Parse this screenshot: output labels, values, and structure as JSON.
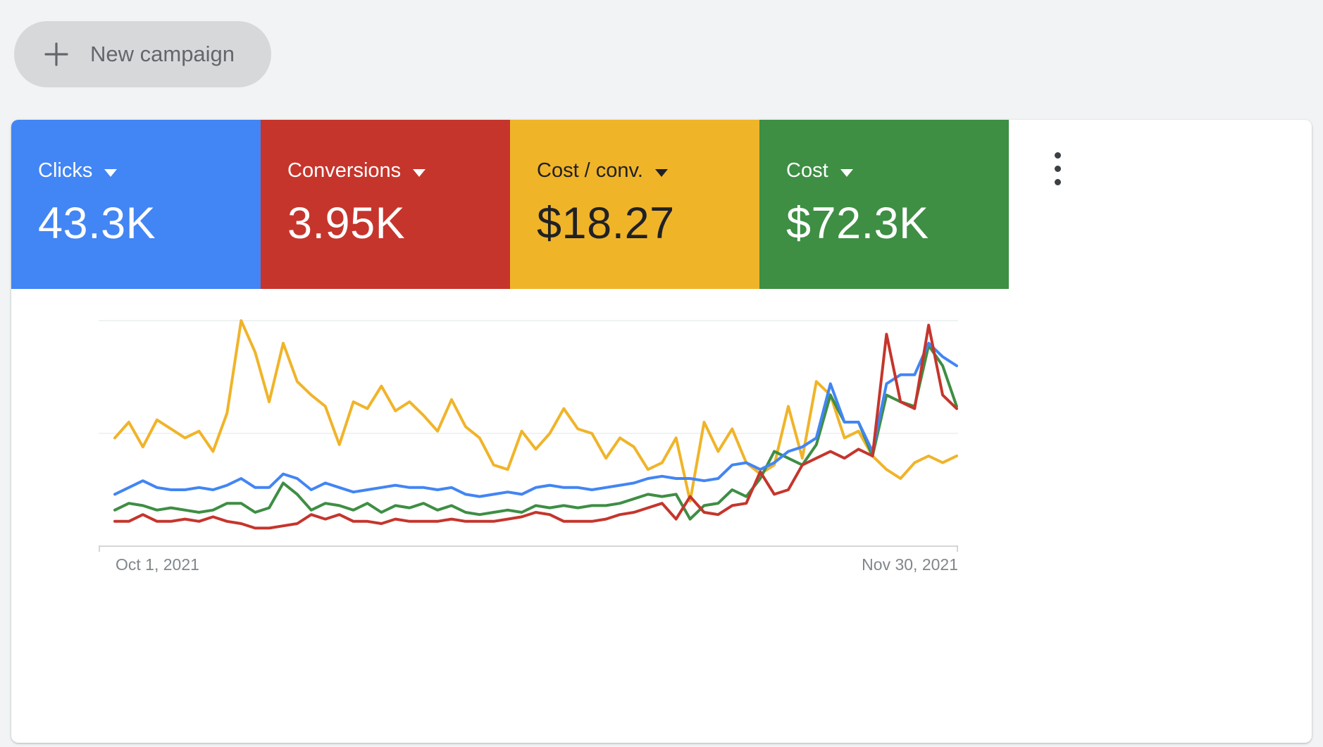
{
  "colors": {
    "page_background": "#f1f3f4",
    "card_background": "#ffffff",
    "axis_line": "#c6c9cc",
    "gridline": "#ebedef",
    "axis_label_text": "#80868b"
  },
  "new_campaign_button": {
    "label": "New campaign",
    "icon": "plus-icon"
  },
  "summary_card": {
    "more_options_icon": "kebab-menu",
    "metrics": [
      {
        "label": "Clicks",
        "value": "43.3K",
        "color": "#4285F4",
        "text_color": "#ffffff"
      },
      {
        "label": "Conversions",
        "value": "3.95K",
        "color": "#C5352C",
        "text_color": "#ffffff"
      },
      {
        "label": "Cost / conv.",
        "value": "$18.27",
        "color": "#F0B429",
        "text_color": "#202124"
      },
      {
        "label": "Cost",
        "value": "$72.3K",
        "color": "#3E8E44",
        "text_color": "#ffffff"
      }
    ]
  },
  "chart_data": {
    "type": "line",
    "title": "",
    "xlabel": "",
    "ylabel": "",
    "x_start_label": "Oct 1, 2021",
    "x_end_label": "Nov 30, 2021",
    "x_range": [
      "Oct 1, 2021",
      "Nov 30, 2021"
    ],
    "points_per_series": 61,
    "x_unit": "day",
    "y_units": "normalized 0-100 of plot height; each metric is auto-scaled independently, no y-axis tick labels are shown",
    "gridline_values": [
      50,
      100
    ],
    "legend": "tile colors above act as legend",
    "series": [
      {
        "name": "Cost / conv.",
        "color": "#F0B429",
        "values": [
          48,
          55,
          44,
          56,
          52,
          48,
          51,
          42,
          59,
          100,
          86,
          64,
          90,
          73,
          67,
          62,
          45,
          64,
          61,
          71,
          60,
          64,
          58,
          51,
          65,
          53,
          48,
          36,
          34,
          51,
          43,
          50,
          61,
          52,
          50,
          39,
          48,
          44,
          34,
          37,
          48,
          20,
          55,
          42,
          52,
          37,
          32,
          36,
          62,
          39,
          73,
          67,
          48,
          51,
          40,
          34,
          30,
          37,
          40,
          37,
          40
        ]
      },
      {
        "name": "Cost",
        "color": "#3E8E44",
        "values": [
          16,
          19,
          18,
          16,
          17,
          16,
          15,
          16,
          19,
          19,
          15,
          17,
          28,
          23,
          16,
          19,
          18,
          16,
          19,
          15,
          18,
          17,
          19,
          16,
          18,
          15,
          14,
          15,
          16,
          15,
          18,
          17,
          18,
          17,
          18,
          18,
          19,
          21,
          23,
          22,
          23,
          12,
          18,
          19,
          25,
          22,
          30,
          42,
          39,
          36,
          45,
          67,
          55,
          55,
          40,
          67,
          64,
          62,
          89,
          80,
          62
        ]
      },
      {
        "name": "Clicks",
        "color": "#4285F4",
        "values": [
          23,
          26,
          29,
          26,
          25,
          25,
          26,
          25,
          27,
          30,
          26,
          26,
          32,
          30,
          25,
          28,
          26,
          24,
          25,
          26,
          27,
          26,
          26,
          25,
          26,
          23,
          22,
          23,
          24,
          23,
          26,
          27,
          26,
          26,
          25,
          26,
          27,
          28,
          30,
          31,
          30,
          30,
          29,
          30,
          36,
          37,
          34,
          37,
          42,
          44,
          48,
          72,
          55,
          55,
          42,
          72,
          76,
          76,
          90,
          84,
          80
        ]
      },
      {
        "name": "Conversions",
        "color": "#C5352C",
        "values": [
          11,
          11,
          14,
          11,
          11,
          12,
          11,
          13,
          11,
          10,
          8,
          8,
          9,
          10,
          14,
          12,
          14,
          11,
          11,
          10,
          12,
          11,
          11,
          11,
          12,
          11,
          11,
          11,
          12,
          13,
          15,
          14,
          11,
          11,
          11,
          12,
          14,
          15,
          17,
          19,
          12,
          22,
          15,
          14,
          18,
          19,
          33,
          23,
          25,
          36,
          39,
          42,
          39,
          43,
          40,
          94,
          64,
          61,
          98,
          67,
          61
        ]
      }
    ]
  }
}
